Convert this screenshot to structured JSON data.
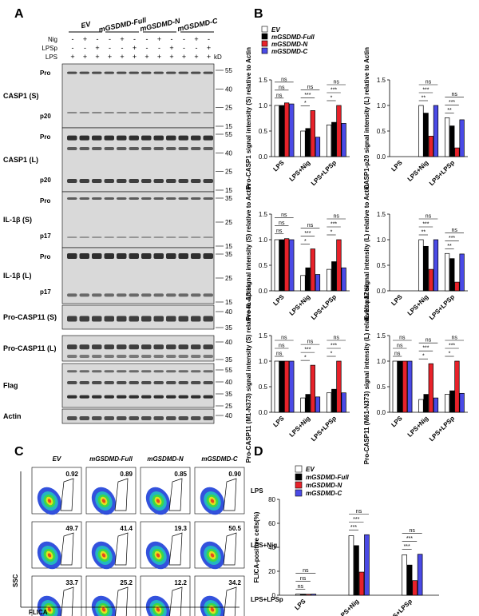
{
  "panels": {
    "A": "A",
    "B": "B",
    "C": "C",
    "D": "D"
  },
  "groups": [
    "EV",
    "mGSDMD-Full",
    "mGSDMD-N",
    "mGSDMD-C"
  ],
  "treatment_rows": {
    "nig": "Nig",
    "lpsp": "LPSp",
    "lps": "LPS"
  },
  "treatment_marks": {
    "nig": [
      "-",
      "+",
      "-",
      "-",
      "+",
      "-",
      "-",
      "+",
      "-",
      "-",
      "+",
      "-"
    ],
    "lpsp": [
      "-",
      "-",
      "+",
      "-",
      "-",
      "+",
      "-",
      "-",
      "+",
      "-",
      "-",
      "+"
    ],
    "lps": [
      "+",
      "+",
      "+",
      "+",
      "+",
      "+",
      "+",
      "+",
      "+",
      "+",
      "+",
      "+"
    ]
  },
  "kd_label": "kD",
  "blots": [
    {
      "label": "CASP1 (S)",
      "markers": [
        "55",
        "40",
        "25",
        "15"
      ],
      "bands": [
        "Pro",
        "p20"
      ]
    },
    {
      "label": "CASP1 (L)",
      "markers": [
        "55",
        "40",
        "25",
        "15"
      ],
      "bands": [
        "Pro",
        "p20"
      ]
    },
    {
      "label": "IL-1β (S)",
      "markers": [
        "35",
        "25",
        "15"
      ],
      "bands": [
        "Pro",
        "p17"
      ]
    },
    {
      "label": "IL-1β (L)",
      "markers": [
        "35",
        "25",
        "15"
      ],
      "bands": [
        "Pro",
        "p17"
      ]
    },
    {
      "label": "Pro-CASP11 (S)",
      "markers": [
        "40",
        "35"
      ],
      "bands": []
    },
    {
      "label": "Pro-CASP11 (L)",
      "markers": [
        "40",
        "35"
      ],
      "bands": []
    },
    {
      "label": "Flag",
      "markers": [
        "55",
        "40",
        "35",
        "25"
      ],
      "bands": []
    },
    {
      "label": "Actin",
      "markers": [
        "40"
      ],
      "bands": []
    }
  ],
  "legend": [
    "EV",
    "mGSDMD-Full",
    "mGSDMD-N",
    "mGSDMD-C"
  ],
  "colors": {
    "EV": "#ffffff",
    "mGSDMD-Full": "#000000",
    "mGSDMD-N": "#e8222a",
    "mGSDMD-C": "#4a4ae6"
  },
  "chart_data": [
    {
      "type": "bar",
      "ylabel": "Pro-CASP1 signal intensity (S) relative to Actin",
      "categories": [
        "LPS",
        "LPS+Nig",
        "LPS+LPSp"
      ],
      "ylim": [
        0,
        1.5
      ],
      "ticks": [
        "0.0",
        "0.5",
        "1.0",
        "1.5"
      ],
      "series": [
        {
          "name": "EV",
          "values": [
            1.0,
            0.5,
            0.62
          ]
        },
        {
          "name": "mGSDMD-Full",
          "values": [
            1.0,
            0.55,
            0.67
          ]
        },
        {
          "name": "mGSDMD-N",
          "values": [
            1.05,
            0.9,
            1.0
          ]
        },
        {
          "name": "mGSDMD-C",
          "values": [
            1.03,
            0.38,
            0.65
          ]
        }
      ],
      "sig": [
        "ns",
        "ns",
        "ns",
        "*",
        "***",
        "ns",
        "*",
        "***",
        "ns"
      ]
    },
    {
      "type": "bar",
      "ylabel": "CASP1-p20 signal intensity (L) relative to Actin",
      "categories": [
        "LPS",
        "LPS+Nig",
        "LPS+LPSp"
      ],
      "ylim": [
        0,
        1.5
      ],
      "ticks": [
        "0.0",
        "0.5",
        "1.0",
        "1.5"
      ],
      "series": [
        {
          "name": "EV",
          "values": [
            0,
            1.0,
            0.76
          ]
        },
        {
          "name": "mGSDMD-Full",
          "values": [
            0,
            0.85,
            0.6
          ]
        },
        {
          "name": "mGSDMD-N",
          "values": [
            0,
            0.4,
            0.17
          ]
        },
        {
          "name": "mGSDMD-C",
          "values": [
            0,
            1.0,
            0.72
          ]
        }
      ],
      "sig": [
        "**",
        "***",
        "ns",
        "**",
        "***",
        "ns"
      ]
    },
    {
      "type": "bar",
      "ylabel": "Pro-IL-1β signal intensity (S) relative to Actin",
      "categories": [
        "LPS",
        "LPS+Nig",
        "LPS+LPSp"
      ],
      "ylim": [
        0,
        1.5
      ],
      "ticks": [
        "0.0",
        "0.5",
        "1.0",
        "1.5"
      ],
      "series": [
        {
          "name": "EV",
          "values": [
            1.0,
            0.3,
            0.42
          ]
        },
        {
          "name": "mGSDMD-Full",
          "values": [
            1.0,
            0.45,
            0.57
          ]
        },
        {
          "name": "mGSDMD-N",
          "values": [
            1.02,
            0.82,
            1.0
          ]
        },
        {
          "name": "mGSDMD-C",
          "values": [
            1.0,
            0.32,
            0.45
          ]
        }
      ],
      "sig": [
        "ns",
        "ns",
        "ns",
        "*",
        "***",
        "ns",
        "*",
        "***",
        "ns"
      ]
    },
    {
      "type": "bar",
      "ylabel": "IL-1b-p17 signal intensity (L) relative to Actin",
      "categories": [
        "LPS",
        "LPS+Nig",
        "LPS+LPSp"
      ],
      "ylim": [
        0,
        1.5
      ],
      "ticks": [
        "0.0",
        "0.5",
        "1.0",
        "1.5"
      ],
      "series": [
        {
          "name": "EV",
          "values": [
            0,
            1.0,
            0.73
          ]
        },
        {
          "name": "mGSDMD-Full",
          "values": [
            0,
            0.87,
            0.63
          ]
        },
        {
          "name": "mGSDMD-N",
          "values": [
            0,
            0.42,
            0.17
          ]
        },
        {
          "name": "mGSDMD-C",
          "values": [
            0,
            1.0,
            0.72
          ]
        }
      ],
      "sig": [
        "**",
        "***",
        "ns",
        "**",
        "***",
        "ns"
      ]
    },
    {
      "type": "bar",
      "ylabel": "Pro-CASP11 (M1-N373) signal intensity (S) relative to Actin",
      "categories": [
        "LPS",
        "LPS+Nig",
        "LPS+LPSp"
      ],
      "ylim": [
        0,
        1.5
      ],
      "ticks": [
        "0.0",
        "0.5",
        "1.0",
        "1.5"
      ],
      "series": [
        {
          "name": "EV",
          "values": [
            1.0,
            0.28,
            0.38
          ]
        },
        {
          "name": "mGSDMD-Full",
          "values": [
            1.0,
            0.35,
            0.45
          ]
        },
        {
          "name": "mGSDMD-N",
          "values": [
            1.0,
            0.92,
            1.0
          ]
        },
        {
          "name": "mGSDMD-C",
          "values": [
            1.0,
            0.3,
            0.38
          ]
        }
      ],
      "sig": [
        "ns",
        "ns",
        "ns",
        "*",
        "***",
        "ns",
        "*",
        "***",
        "ns"
      ]
    },
    {
      "type": "bar",
      "ylabel": "Pro-CASP11 (M61-N373) signal intensity (L) relative to Actin",
      "categories": [
        "LPS",
        "LPS+Nig",
        "LPS+LPSp"
      ],
      "ylim": [
        0,
        1.5
      ],
      "ticks": [
        "0.0",
        "0.5",
        "1.0",
        "1.5"
      ],
      "series": [
        {
          "name": "EV",
          "values": [
            1.0,
            0.25,
            0.35
          ]
        },
        {
          "name": "mGSDMD-Full",
          "values": [
            1.0,
            0.35,
            0.42
          ]
        },
        {
          "name": "mGSDMD-N",
          "values": [
            1.0,
            0.95,
            1.0
          ]
        },
        {
          "name": "mGSDMD-C",
          "values": [
            1.0,
            0.28,
            0.37
          ]
        }
      ],
      "sig": [
        "ns",
        "ns",
        "ns",
        "*",
        "***",
        "ns",
        "*",
        "***",
        "ns"
      ]
    },
    {
      "type": "bar",
      "ylabel": "FLICA-positive cells(%)",
      "categories": [
        "LPS",
        "LPS+Nig",
        "LPS+LPSp"
      ],
      "ylim": [
        0,
        80
      ],
      "ticks": [
        "0",
        "20",
        "40",
        "60",
        "80"
      ],
      "series": [
        {
          "name": "EV",
          "values": [
            0.9,
            49.7,
            33.7
          ]
        },
        {
          "name": "mGSDMD-Full",
          "values": [
            0.9,
            41.4,
            25.2
          ]
        },
        {
          "name": "mGSDMD-N",
          "values": [
            0.8,
            19.3,
            12.2
          ]
        },
        {
          "name": "mGSDMD-C",
          "values": [
            0.9,
            50.5,
            34.2
          ]
        }
      ],
      "sig": [
        "ns",
        "ns",
        "ns",
        "***",
        "***",
        "ns",
        "***",
        "***",
        "ns"
      ]
    }
  ],
  "facs": {
    "columns": [
      "EV",
      "mGSDMD-Full",
      "mGSDMD-N",
      "mGSDMD-C"
    ],
    "rows": [
      "LPS",
      "LPS+Nig",
      "LPS+LPSp"
    ],
    "values": [
      [
        "0.92",
        "0.89",
        "0.85",
        "0.90"
      ],
      [
        "49.7",
        "41.4",
        "19.3",
        "50.5"
      ],
      [
        "33.7",
        "25.2",
        "12.2",
        "34.2"
      ]
    ],
    "xlabel": "FLICA",
    "ylabel": "SSC"
  }
}
